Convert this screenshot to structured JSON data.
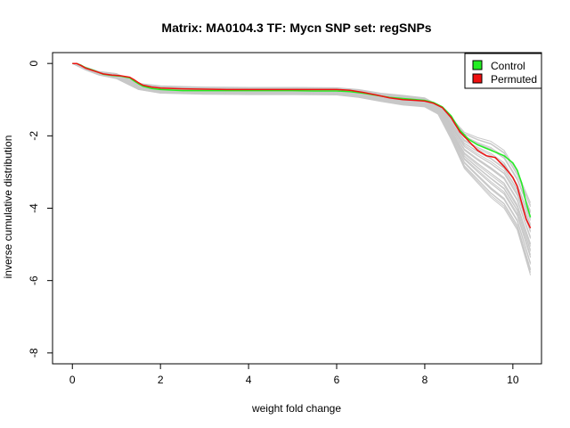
{
  "chart_data": {
    "type": "line",
    "title": "Matrix: MA0104.3 TF: Mycn SNP set: regSNPs",
    "xlabel": "weight fold change",
    "ylabel": "inverse cumulative distribution",
    "xlim": [
      -0.45,
      10.65
    ],
    "ylim": [
      -8.3,
      0.3
    ],
    "xticks": [
      0,
      2,
      4,
      6,
      8,
      10
    ],
    "yticks": [
      0,
      -2,
      -4,
      -6,
      -8
    ],
    "grid": false,
    "legend_position": "top-right",
    "legend": [
      {
        "label": "Control",
        "color": "#22ee22"
      },
      {
        "label": "Permuted",
        "color": "#ee1111"
      }
    ],
    "background_band": {
      "color": "#c8c8c8",
      "x": [
        0,
        0.3,
        0.6,
        1.0,
        1.5,
        2.0,
        3.0,
        4.0,
        5.0,
        6.0,
        6.5,
        7.0,
        7.5,
        8.0,
        8.3,
        8.6,
        8.9,
        9.2,
        9.5,
        9.8,
        10.1,
        10.4
      ],
      "upper": [
        0,
        -0.1,
        -0.22,
        -0.28,
        -0.55,
        -0.62,
        -0.65,
        -0.66,
        -0.66,
        -0.67,
        -0.72,
        -0.82,
        -0.88,
        -0.95,
        -1.15,
        -1.5,
        -1.9,
        -2.05,
        -2.15,
        -2.4,
        -3.0,
        -3.85
      ],
      "lower": [
        0,
        -0.18,
        -0.32,
        -0.42,
        -0.72,
        -0.82,
        -0.85,
        -0.86,
        -0.86,
        -0.87,
        -0.94,
        -1.05,
        -1.15,
        -1.2,
        -1.4,
        -2.1,
        -2.9,
        -3.3,
        -3.7,
        -4.0,
        -4.6,
        -5.85
      ]
    },
    "series": [
      {
        "name": "Control",
        "color": "#22ee22",
        "x": [
          0,
          0.1,
          0.2,
          0.3,
          0.5,
          0.7,
          0.9,
          1.1,
          1.3,
          1.4,
          1.5,
          1.6,
          1.8,
          2.0,
          2.5,
          3.0,
          3.5,
          4.0,
          4.5,
          5.0,
          5.5,
          6.0,
          6.3,
          6.6,
          6.9,
          7.2,
          7.5,
          7.8,
          8.0,
          8.2,
          8.4,
          8.6,
          8.8,
          9.0,
          9.2,
          9.4,
          9.6,
          9.8,
          10.0,
          10.1,
          10.2,
          10.3,
          10.4
        ],
        "y": [
          0,
          0,
          -0.05,
          -0.12,
          -0.2,
          -0.3,
          -0.33,
          -0.35,
          -0.4,
          -0.48,
          -0.56,
          -0.63,
          -0.69,
          -0.72,
          -0.75,
          -0.75,
          -0.75,
          -0.75,
          -0.75,
          -0.75,
          -0.76,
          -0.76,
          -0.78,
          -0.82,
          -0.88,
          -0.94,
          -0.97,
          -1.0,
          -1.02,
          -1.08,
          -1.2,
          -1.45,
          -1.85,
          -2.1,
          -2.25,
          -2.35,
          -2.45,
          -2.55,
          -2.75,
          -2.95,
          -3.3,
          -3.85,
          -4.25
        ]
      },
      {
        "name": "Permuted",
        "color": "#ee1111",
        "x": [
          0,
          0.1,
          0.2,
          0.3,
          0.5,
          0.7,
          0.9,
          1.1,
          1.3,
          1.4,
          1.5,
          1.6,
          1.8,
          2.0,
          2.5,
          3.0,
          3.5,
          4.0,
          4.5,
          5.0,
          5.5,
          6.0,
          6.3,
          6.6,
          6.9,
          7.2,
          7.5,
          7.8,
          8.0,
          8.2,
          8.4,
          8.6,
          8.8,
          9.0,
          9.2,
          9.4,
          9.6,
          9.8,
          10.0,
          10.1,
          10.2,
          10.3,
          10.4
        ],
        "y": [
          0,
          0,
          -0.06,
          -0.13,
          -0.21,
          -0.29,
          -0.32,
          -0.34,
          -0.38,
          -0.45,
          -0.53,
          -0.6,
          -0.65,
          -0.68,
          -0.7,
          -0.71,
          -0.72,
          -0.72,
          -0.72,
          -0.72,
          -0.72,
          -0.72,
          -0.74,
          -0.8,
          -0.87,
          -0.95,
          -1.0,
          -1.02,
          -1.04,
          -1.1,
          -1.22,
          -1.5,
          -1.9,
          -2.15,
          -2.4,
          -2.55,
          -2.6,
          -2.85,
          -3.15,
          -3.4,
          -3.85,
          -4.3,
          -4.55
        ]
      }
    ]
  }
}
